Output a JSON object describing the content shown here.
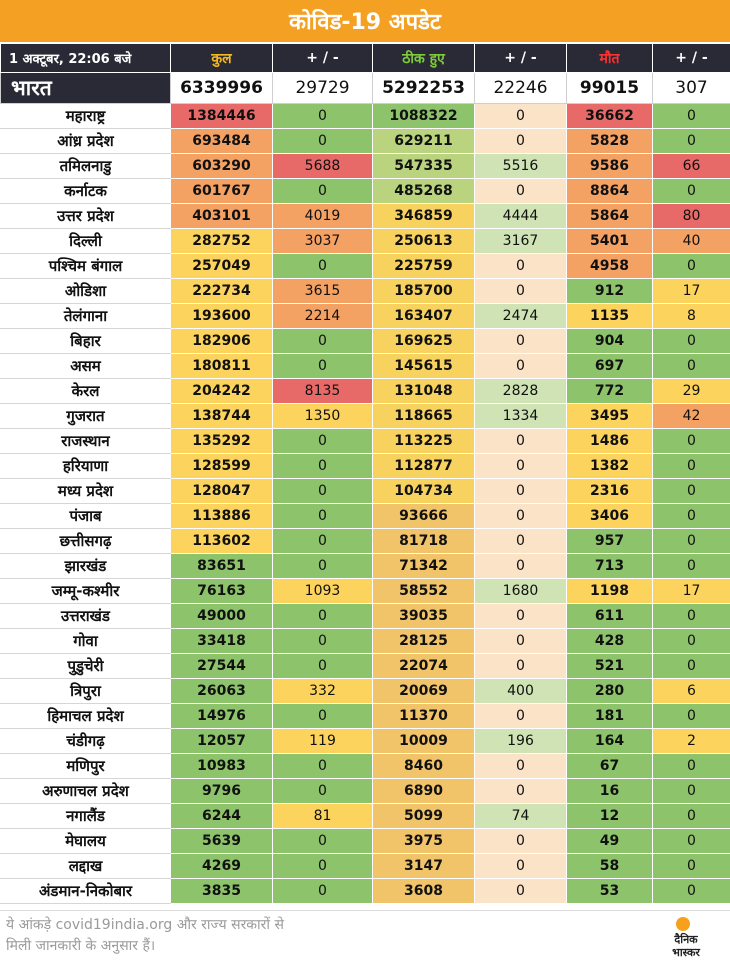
{
  "title": "कोविड-19 अपडेट",
  "header": {
    "date": "1 अक्टूबर, 22:06 बजे",
    "total": "कुल",
    "total_change": "+ / -",
    "recovered": "ठीक हुए",
    "recovered_change": "+ / -",
    "deaths": "मौत",
    "deaths_change": "+ / -"
  },
  "india": {
    "name": "भारत",
    "total": "6339996",
    "total_change": "29729",
    "recovered": "5292253",
    "recovered_change": "22246",
    "deaths": "99015",
    "deaths_change": "307"
  },
  "colors": {
    "green": "#8dc36b",
    "peach": "#fbe3c8",
    "yellow": "#fbd35d",
    "orange": "#f4a164",
    "red": "#e86a68",
    "dark": "#2a2a36",
    "accent": "#f4a023"
  },
  "states": [
    {
      "name": "महाराष्ट्र",
      "total": "1384446",
      "total_change": "0",
      "recovered": "1088322",
      "recovered_change": "0",
      "deaths": "36662",
      "deaths_change": "0"
    },
    {
      "name": "आंध्र प्रदेश",
      "total": "693484",
      "total_change": "0",
      "recovered": "629211",
      "recovered_change": "0",
      "deaths": "5828",
      "deaths_change": "0"
    },
    {
      "name": "तमिलनाडु",
      "total": "603290",
      "total_change": "5688",
      "recovered": "547335",
      "recovered_change": "5516",
      "deaths": "9586",
      "deaths_change": "66"
    },
    {
      "name": "कर्नाटक",
      "total": "601767",
      "total_change": "0",
      "recovered": "485268",
      "recovered_change": "0",
      "deaths": "8864",
      "deaths_change": "0"
    },
    {
      "name": "उत्तर प्रदेश",
      "total": "403101",
      "total_change": "4019",
      "recovered": "346859",
      "recovered_change": "4444",
      "deaths": "5864",
      "deaths_change": "80"
    },
    {
      "name": "दिल्ली",
      "total": "282752",
      "total_change": "3037",
      "recovered": "250613",
      "recovered_change": "3167",
      "deaths": "5401",
      "deaths_change": "40"
    },
    {
      "name": "पश्चिम बंगाल",
      "total": "257049",
      "total_change": "0",
      "recovered": "225759",
      "recovered_change": "0",
      "deaths": "4958",
      "deaths_change": "0"
    },
    {
      "name": "ओडिशा",
      "total": "222734",
      "total_change": "3615",
      "recovered": "185700",
      "recovered_change": "0",
      "deaths": "912",
      "deaths_change": "17"
    },
    {
      "name": "तेलंगाना",
      "total": "193600",
      "total_change": "2214",
      "recovered": "163407",
      "recovered_change": "2474",
      "deaths": "1135",
      "deaths_change": "8"
    },
    {
      "name": "बिहार",
      "total": "182906",
      "total_change": "0",
      "recovered": "169625",
      "recovered_change": "0",
      "deaths": "904",
      "deaths_change": "0"
    },
    {
      "name": "असम",
      "total": "180811",
      "total_change": "0",
      "recovered": "145615",
      "recovered_change": "0",
      "deaths": "697",
      "deaths_change": "0"
    },
    {
      "name": "केरल",
      "total": "204242",
      "total_change": "8135",
      "recovered": "131048",
      "recovered_change": "2828",
      "deaths": "772",
      "deaths_change": "29"
    },
    {
      "name": "गुजरात",
      "total": "138744",
      "total_change": "1350",
      "recovered": "118665",
      "recovered_change": "1334",
      "deaths": "3495",
      "deaths_change": "42"
    },
    {
      "name": "राजस्थान",
      "total": "135292",
      "total_change": "0",
      "recovered": "113225",
      "recovered_change": "0",
      "deaths": "1486",
      "deaths_change": "0"
    },
    {
      "name": "हरियाणा",
      "total": "128599",
      "total_change": "0",
      "recovered": "112877",
      "recovered_change": "0",
      "deaths": "1382",
      "deaths_change": "0"
    },
    {
      "name": "मध्य प्रदेश",
      "total": "128047",
      "total_change": "0",
      "recovered": "104734",
      "recovered_change": "0",
      "deaths": "2316",
      "deaths_change": "0"
    },
    {
      "name": "पंजाब",
      "total": "113886",
      "total_change": "0",
      "recovered": "93666",
      "recovered_change": "0",
      "deaths": "3406",
      "deaths_change": "0"
    },
    {
      "name": "छत्तीसगढ़",
      "total": "113602",
      "total_change": "0",
      "recovered": "81718",
      "recovered_change": "0",
      "deaths": "957",
      "deaths_change": "0"
    },
    {
      "name": "झारखंड",
      "total": "83651",
      "total_change": "0",
      "recovered": "71342",
      "recovered_change": "0",
      "deaths": "713",
      "deaths_change": "0"
    },
    {
      "name": "जम्मू-कश्मीर",
      "total": "76163",
      "total_change": "1093",
      "recovered": "58552",
      "recovered_change": "1680",
      "deaths": "1198",
      "deaths_change": "17"
    },
    {
      "name": "उत्तराखंड",
      "total": "49000",
      "total_change": "0",
      "recovered": "39035",
      "recovered_change": "0",
      "deaths": "611",
      "deaths_change": "0"
    },
    {
      "name": "गोवा",
      "total": "33418",
      "total_change": "0",
      "recovered": "28125",
      "recovered_change": "0",
      "deaths": "428",
      "deaths_change": "0"
    },
    {
      "name": "पुडुचेरी",
      "total": "27544",
      "total_change": "0",
      "recovered": "22074",
      "recovered_change": "0",
      "deaths": "521",
      "deaths_change": "0"
    },
    {
      "name": "त्रिपुरा",
      "total": "26063",
      "total_change": "332",
      "recovered": "20069",
      "recovered_change": "400",
      "deaths": "280",
      "deaths_change": "6"
    },
    {
      "name": "हिमाचल प्रदेश",
      "total": "14976",
      "total_change": "0",
      "recovered": "11370",
      "recovered_change": "0",
      "deaths": "181",
      "deaths_change": "0"
    },
    {
      "name": "चंडीगढ़",
      "total": "12057",
      "total_change": "119",
      "recovered": "10009",
      "recovered_change": "196",
      "deaths": "164",
      "deaths_change": "2"
    },
    {
      "name": "मणिपुर",
      "total": "10983",
      "total_change": "0",
      "recovered": "8460",
      "recovered_change": "0",
      "deaths": "67",
      "deaths_change": "0"
    },
    {
      "name": "अरुणाचल प्रदेश",
      "total": "9796",
      "total_change": "0",
      "recovered": "6890",
      "recovered_change": "0",
      "deaths": "16",
      "deaths_change": "0"
    },
    {
      "name": "नगालैंड",
      "total": "6244",
      "total_change": "81",
      "recovered": "5099",
      "recovered_change": "74",
      "deaths": "12",
      "deaths_change": "0"
    },
    {
      "name": "मेघालय",
      "total": "5639",
      "total_change": "0",
      "recovered": "3975",
      "recovered_change": "0",
      "deaths": "49",
      "deaths_change": "0"
    },
    {
      "name": "लद्दाख",
      "total": "4269",
      "total_change": "0",
      "recovered": "3147",
      "recovered_change": "0",
      "deaths": "58",
      "deaths_change": "0"
    },
    {
      "name": "अंडमान-निकोबार",
      "total": "3835",
      "total_change": "0",
      "recovered": "3608",
      "recovered_change": "0",
      "deaths": "53",
      "deaths_change": "0"
    }
  ],
  "footer": {
    "note": "ये आंकड़े covid19india.org और राज्य सरकारों से\nमिली जानकारी के अनुसार हैं।",
    "logo_text": "दैनिक\nभास्कर"
  }
}
